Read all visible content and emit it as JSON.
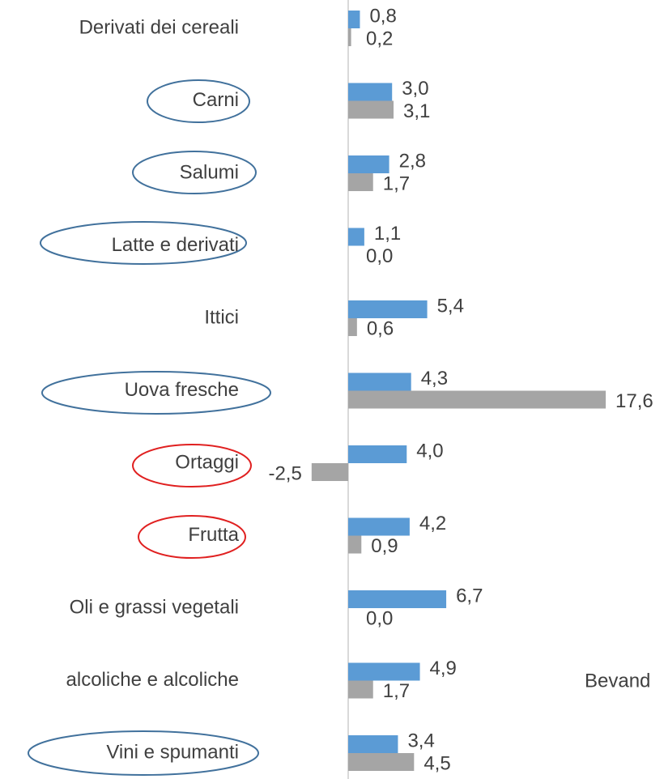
{
  "chart_data": {
    "type": "bar",
    "orientation": "horizontal",
    "categories": [
      "Derivati dei cereali",
      "Carni",
      "Salumi",
      "Latte e derivati",
      "Ittici",
      "Uova fresche",
      "Ortaggi",
      "Frutta",
      "Oli e grassi vegetali",
      "alcoliche e alcoliche",
      "Vini e spumanti"
    ],
    "series": [
      {
        "color": "#5b9bd5",
        "values": [
          0.8,
          3.0,
          2.8,
          1.1,
          5.4,
          4.3,
          4.0,
          4.2,
          6.7,
          4.9,
          3.4
        ],
        "value_labels": [
          "0,8",
          "3,0",
          "2,8",
          "1,1",
          "5,4",
          "4,3",
          "4,0",
          "4,2",
          "6,7",
          "4,9",
          "3,4"
        ]
      },
      {
        "color": "#a5a5a5",
        "values": [
          0.2,
          3.1,
          1.7,
          0.0,
          0.6,
          17.6,
          -2.5,
          0.9,
          0.0,
          1.7,
          4.5
        ],
        "value_labels": [
          "0,2",
          "3,1",
          "1,7",
          "0,0",
          "0,6",
          "17,6",
          "-2,5",
          "0,9",
          "0,0",
          "1,7",
          "4,5"
        ]
      }
    ],
    "annotation": "Bevand"
  }
}
